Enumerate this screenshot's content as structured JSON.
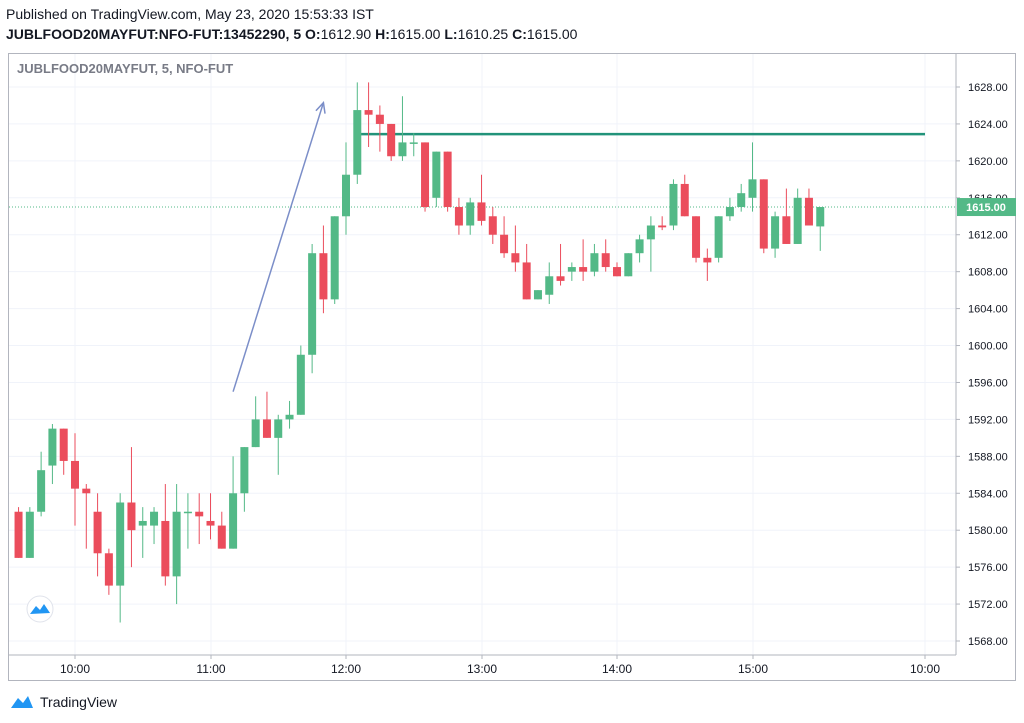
{
  "header": {
    "published_line": "Published on TradingView.com, May 23, 2020 15:53:33 IST",
    "symbol_line": "JUBLFOOD20MAYFUT:NFO-FUT:13452290, 5",
    "o_label": "O:",
    "o_value": "1612.90",
    "h_label": "H:",
    "h_value": "1615.00",
    "l_label": "L:",
    "l_value": "1610.25",
    "c_label": "C:",
    "c_value": "1615.00"
  },
  "legend": "JUBLFOOD20MAYFUT, 5, NFO-FUT",
  "footer": {
    "brand": "TradingView"
  },
  "colors": {
    "up": "#53b987",
    "down": "#eb4d5c",
    "grid": "#f0f3fa",
    "axis_text": "#131722",
    "trend": "#7b8ec8",
    "hline": "#22937a"
  },
  "chart_data": {
    "type": "candlestick",
    "interval_minutes": 5,
    "yticks": [
      "1628.00",
      "1624.00",
      "1620.00",
      "1616.00",
      "1612.00",
      "1608.00",
      "1604.00",
      "1600.00",
      "1596.00",
      "1592.00",
      "1588.00",
      "1584.00",
      "1580.00",
      "1576.00",
      "1572.00",
      "1568.00"
    ],
    "xticks": [
      "10:00",
      "11:00",
      "12:00",
      "13:00",
      "14:00",
      "15:00",
      "10:00"
    ],
    "last_price": "1615.00",
    "horizontal_line": {
      "price": 1622.9,
      "from": "12:05",
      "to": "next 10:00"
    },
    "trend_line": {
      "from": {
        "time": "11:10",
        "price": 1595.0
      },
      "to": {
        "time": "11:50",
        "price": 1626.3
      }
    },
    "candles": [
      {
        "t": "09:35",
        "o": 1582,
        "h": 1582.5,
        "l": 1577,
        "c": 1577
      },
      {
        "t": "09:40",
        "o": 1577,
        "h": 1582.5,
        "l": 1577,
        "c": 1582
      },
      {
        "t": "09:45",
        "o": 1582,
        "h": 1588.5,
        "l": 1581.5,
        "c": 1586.5
      },
      {
        "t": "09:50",
        "o": 1587,
        "h": 1591.5,
        "l": 1585,
        "c": 1591
      },
      {
        "t": "09:55",
        "o": 1591,
        "h": 1591,
        "l": 1586,
        "c": 1587.5
      },
      {
        "t": "10:00",
        "o": 1587.5,
        "h": 1590.5,
        "l": 1580.5,
        "c": 1584.5
      },
      {
        "t": "10:05",
        "o": 1584.5,
        "h": 1585,
        "l": 1578,
        "c": 1584
      },
      {
        "t": "10:10",
        "o": 1582,
        "h": 1584,
        "l": 1575,
        "c": 1577.5
      },
      {
        "t": "10:15",
        "o": 1577.5,
        "h": 1578,
        "l": 1573,
        "c": 1574
      },
      {
        "t": "10:20",
        "o": 1574,
        "h": 1584,
        "l": 1570,
        "c": 1583
      },
      {
        "t": "10:25",
        "o": 1583,
        "h": 1589,
        "l": 1576,
        "c": 1580
      },
      {
        "t": "10:30",
        "o": 1580.5,
        "h": 1582.5,
        "l": 1577,
        "c": 1581
      },
      {
        "t": "10:35",
        "o": 1580.5,
        "h": 1582.5,
        "l": 1578.5,
        "c": 1582
      },
      {
        "t": "10:40",
        "o": 1581,
        "h": 1585,
        "l": 1574,
        "c": 1575
      },
      {
        "t": "10:45",
        "o": 1575,
        "h": 1585,
        "l": 1572,
        "c": 1582
      },
      {
        "t": "10:50",
        "o": 1582,
        "h": 1584,
        "l": 1578,
        "c": 1582
      },
      {
        "t": "10:55",
        "o": 1582,
        "h": 1584,
        "l": 1578.5,
        "c": 1581.5
      },
      {
        "t": "11:00",
        "o": 1581,
        "h": 1584,
        "l": 1579,
        "c": 1580.5
      },
      {
        "t": "11:05",
        "o": 1580.5,
        "h": 1582,
        "l": 1578,
        "c": 1578
      },
      {
        "t": "11:10",
        "o": 1578,
        "h": 1588,
        "l": 1578,
        "c": 1584
      },
      {
        "t": "11:15",
        "o": 1584,
        "h": 1589,
        "l": 1582,
        "c": 1589
      },
      {
        "t": "11:20",
        "o": 1589,
        "h": 1594.5,
        "l": 1589,
        "c": 1592
      },
      {
        "t": "11:25",
        "o": 1592,
        "h": 1595,
        "l": 1590,
        "c": 1590
      },
      {
        "t": "11:30",
        "o": 1590,
        "h": 1592.5,
        "l": 1586,
        "c": 1592
      },
      {
        "t": "11:35",
        "o": 1592,
        "h": 1594,
        "l": 1591,
        "c": 1592.5
      },
      {
        "t": "11:40",
        "o": 1592.5,
        "h": 1600,
        "l": 1592.5,
        "c": 1599
      },
      {
        "t": "11:45",
        "o": 1599,
        "h": 1611,
        "l": 1597,
        "c": 1610
      },
      {
        "t": "11:50",
        "o": 1610,
        "h": 1613,
        "l": 1603.5,
        "c": 1605
      },
      {
        "t": "11:55",
        "o": 1605,
        "h": 1614,
        "l": 1604.5,
        "c": 1614
      },
      {
        "t": "12:00",
        "o": 1614,
        "h": 1622,
        "l": 1612,
        "c": 1618.5
      },
      {
        "t": "12:05",
        "o": 1618.5,
        "h": 1628.5,
        "l": 1617.5,
        "c": 1625.5
      },
      {
        "t": "12:10",
        "o": 1625.5,
        "h": 1628.5,
        "l": 1621.5,
        "c": 1625
      },
      {
        "t": "12:15",
        "o": 1625,
        "h": 1626,
        "l": 1621,
        "c": 1624
      },
      {
        "t": "12:20",
        "o": 1624,
        "h": 1624,
        "l": 1620,
        "c": 1620.5
      },
      {
        "t": "12:25",
        "o": 1620.5,
        "h": 1627,
        "l": 1620,
        "c": 1622
      },
      {
        "t": "12:30",
        "o": 1622,
        "h": 1623,
        "l": 1620.5,
        "c": 1622
      },
      {
        "t": "12:35",
        "o": 1622,
        "h": 1622,
        "l": 1614.5,
        "c": 1615
      },
      {
        "t": "12:40",
        "o": 1616,
        "h": 1621,
        "l": 1615,
        "c": 1621
      },
      {
        "t": "12:45",
        "o": 1621,
        "h": 1621,
        "l": 1614.5,
        "c": 1615
      },
      {
        "t": "12:50",
        "o": 1615,
        "h": 1616,
        "l": 1612,
        "c": 1613
      },
      {
        "t": "12:55",
        "o": 1613,
        "h": 1616,
        "l": 1612,
        "c": 1615.5
      },
      {
        "t": "13:00",
        "o": 1615.5,
        "h": 1618.5,
        "l": 1613,
        "c": 1613.5
      },
      {
        "t": "13:05",
        "o": 1614,
        "h": 1615,
        "l": 1611,
        "c": 1612
      },
      {
        "t": "13:10",
        "o": 1612,
        "h": 1614,
        "l": 1609.5,
        "c": 1610
      },
      {
        "t": "13:15",
        "o": 1610,
        "h": 1613,
        "l": 1608,
        "c": 1609
      },
      {
        "t": "13:20",
        "o": 1609,
        "h": 1611,
        "l": 1605,
        "c": 1605
      },
      {
        "t": "13:25",
        "o": 1605,
        "h": 1606,
        "l": 1605,
        "c": 1606
      },
      {
        "t": "13:30",
        "o": 1605.5,
        "h": 1609,
        "l": 1604.5,
        "c": 1607.5
      },
      {
        "t": "13:35",
        "o": 1607.5,
        "h": 1611,
        "l": 1606.5,
        "c": 1607
      },
      {
        "t": "13:40",
        "o": 1608,
        "h": 1609,
        "l": 1607,
        "c": 1608.5
      },
      {
        "t": "13:45",
        "o": 1608.5,
        "h": 1611.5,
        "l": 1607,
        "c": 1608
      },
      {
        "t": "13:50",
        "o": 1608,
        "h": 1611,
        "l": 1607.5,
        "c": 1610
      },
      {
        "t": "13:55",
        "o": 1610,
        "h": 1611.5,
        "l": 1608,
        "c": 1608.5
      },
      {
        "t": "14:00",
        "o": 1608.5,
        "h": 1609,
        "l": 1607.5,
        "c": 1607.5
      },
      {
        "t": "14:05",
        "o": 1607.5,
        "h": 1610,
        "l": 1607.5,
        "c": 1610
      },
      {
        "t": "14:10",
        "o": 1610,
        "h": 1612,
        "l": 1609,
        "c": 1611.5
      },
      {
        "t": "14:15",
        "o": 1611.5,
        "h": 1614,
        "l": 1608,
        "c": 1613
      },
      {
        "t": "14:20",
        "o": 1613,
        "h": 1614,
        "l": 1612.5,
        "c": 1612.8
      },
      {
        "t": "14:25",
        "o": 1613,
        "h": 1618,
        "l": 1612.5,
        "c": 1617.5
      },
      {
        "t": "14:30",
        "o": 1617.5,
        "h": 1618.5,
        "l": 1614,
        "c": 1614
      },
      {
        "t": "14:35",
        "o": 1614,
        "h": 1614,
        "l": 1609,
        "c": 1609.5
      },
      {
        "t": "14:40",
        "o": 1609.5,
        "h": 1610.5,
        "l": 1607,
        "c": 1609
      },
      {
        "t": "14:45",
        "o": 1609.5,
        "h": 1614,
        "l": 1609,
        "c": 1614
      },
      {
        "t": "14:50",
        "o": 1614,
        "h": 1616,
        "l": 1613.5,
        "c": 1615
      },
      {
        "t": "14:55",
        "o": 1615,
        "h": 1617.5,
        "l": 1614.5,
        "c": 1616.5
      },
      {
        "t": "15:00",
        "o": 1616,
        "h": 1622,
        "l": 1614.5,
        "c": 1618
      },
      {
        "t": "15:05",
        "o": 1618,
        "h": 1618,
        "l": 1610,
        "c": 1610.5
      },
      {
        "t": "15:10",
        "o": 1610.5,
        "h": 1614.5,
        "l": 1609.5,
        "c": 1614
      },
      {
        "t": "15:15",
        "o": 1614,
        "h": 1617,
        "l": 1611,
        "c": 1611
      },
      {
        "t": "15:20",
        "o": 1611,
        "h": 1617,
        "l": 1611,
        "c": 1616
      },
      {
        "t": "15:25",
        "o": 1616,
        "h": 1617,
        "l": 1613,
        "c": 1613
      },
      {
        "t": "15:30",
        "o": 1612.9,
        "h": 1615,
        "l": 1610.25,
        "c": 1615
      }
    ]
  }
}
